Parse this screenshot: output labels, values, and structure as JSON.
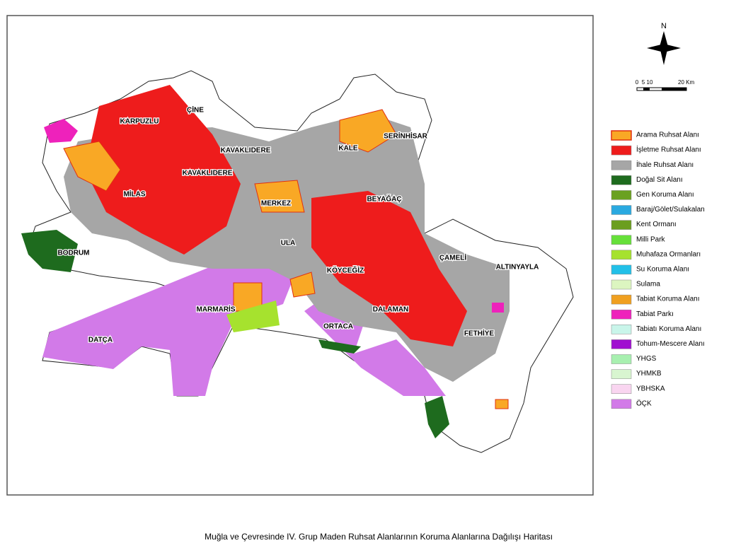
{
  "map": {
    "north": "N",
    "scale_labels": [
      "0",
      "5",
      "10",
      "20 Km"
    ],
    "places": [
      "KARPUZLU",
      "ÇİNE",
      "KAVAKLIDERE",
      "KALE",
      "SERİNHİSAR",
      "KAVAKLIDERE",
      "MİLAS",
      "MERKEZ",
      "BEYAĞAÇ",
      "BODRUM",
      "ULA",
      "ÇAMELİ",
      "ALTINYAYLA",
      "KÖYCEĞİZ",
      "MARMARİS",
      "DALAMAN",
      "ORTACA",
      "FETHİYE",
      "DATÇA"
    ],
    "legend": [
      {
        "label": "Arama Ruhsat Alanı",
        "color": "#f9a825"
      },
      {
        "label": "İşletme Ruhsat Alanı",
        "color": "#ee1c1c"
      },
      {
        "label": "İhale Ruhsat Alanı",
        "color": "#a6a6a6"
      },
      {
        "label": "Doğal Sit Alanı",
        "color": "#1e6b1e"
      },
      {
        "label": "Gen Koruma Alanı",
        "color": "#6aa121"
      },
      {
        "label": "Baraj/Gölet/Sulakalan",
        "color": "#2aa9e0"
      },
      {
        "label": "Kent Ormanı",
        "color": "#6b9e1f"
      },
      {
        "label": "Milli Park",
        "color": "#66e03a"
      },
      {
        "label": "Muhafaza Ormanları",
        "color": "#a6e22e"
      },
      {
        "label": "Su Koruma Alanı",
        "color": "#22c0e8"
      },
      {
        "label": "Sulama",
        "color": "#dcf5c0"
      },
      {
        "label": "Tabiat Koruma Alanı",
        "color": "#f0a020"
      },
      {
        "label": "Tabiat Parkı",
        "color": "#ee22bb"
      },
      {
        "label": "Tabiatı Koruma Alanı",
        "color": "#c9f5ea"
      },
      {
        "label": "Tohum-Mescere Alanı",
        "color": "#a010d0"
      },
      {
        "label": "YHGS",
        "color": "#a8f0b0"
      },
      {
        "label": "YHMKB",
        "color": "#d8f5d0"
      },
      {
        "label": "YBHSKA",
        "color": "#f9d5f0"
      },
      {
        "label": "ÖÇK",
        "color": "#d27ae8"
      }
    ]
  },
  "caption": "Muğla ve Çevresinde IV. Grup Maden Ruhsat Alanlarının Koruma Alanlarına Dağılışı Haritası"
}
